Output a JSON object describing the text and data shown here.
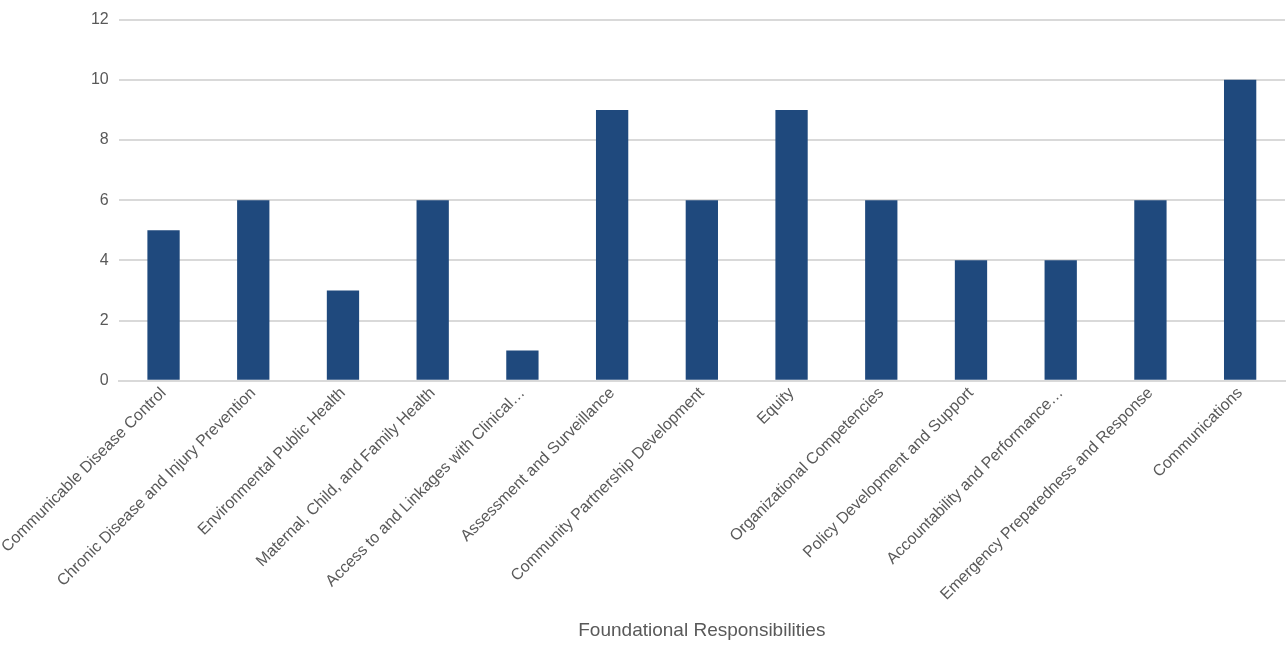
{
  "chart_data": {
    "type": "bar",
    "xlabel": "Foundational Responsibilities",
    "categories": [
      "Communicable Disease Control",
      "Chronic Disease and Injury Prevention",
      "Environmental Public Health",
      "Maternal, Child, and Family Health",
      "Access to and Linkages with Clinical…",
      "Assessment and Surveillance",
      "Community Partnership Development",
      "Equity",
      "Organizational Competencies",
      "Policy Development and Support",
      "Accountability and Performance…",
      "Emergency Preparedness and Response",
      "Communications"
    ],
    "values": [
      5,
      6,
      3,
      6,
      1,
      9,
      6,
      9,
      6,
      4,
      4,
      6,
      10
    ],
    "color": "#1f497d",
    "ylim": [
      0,
      12
    ],
    "yticks": [
      0,
      2,
      4,
      6,
      8,
      10,
      12
    ],
    "grid": "y"
  }
}
